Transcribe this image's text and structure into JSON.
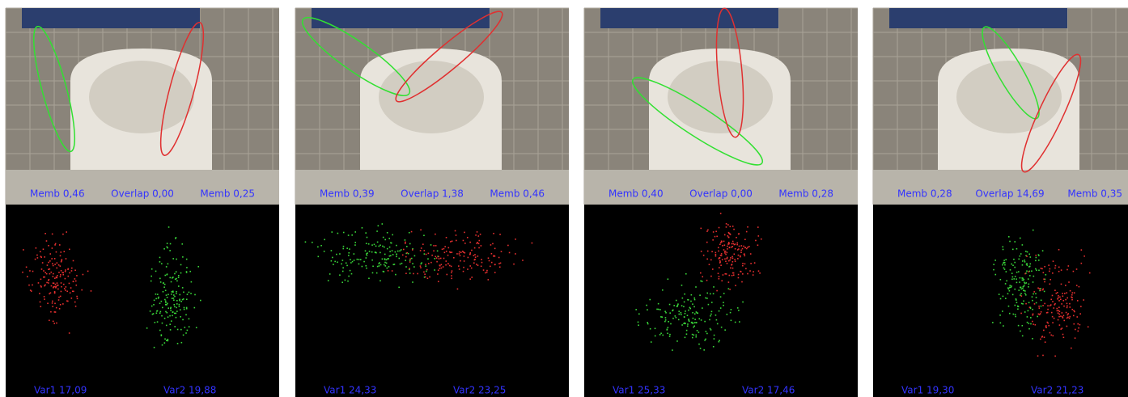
{
  "panels": [
    {
      "memb_left": "Memb 0,46",
      "overlap": "Overlap 0,00",
      "memb_right": "Memb 0,25",
      "var1": "Var1 17,09",
      "var2": "Var2 19,88"
    },
    {
      "memb_left": "Memb 0,39",
      "overlap": "Overlap 1,38",
      "memb_right": "Memb 0,46",
      "var1": "Var1 24,33",
      "var2": "Var2 23,25"
    },
    {
      "memb_left": "Memb 0,40",
      "overlap": "Overlap 0,00",
      "memb_right": "Memb 0,28",
      "var1": "Var1 25,33",
      "var2": "Var2 17,46"
    },
    {
      "memb_left": "Memb 0,28",
      "overlap": "Overlap 14,69",
      "memb_right": "Memb 0,35",
      "var1": "Var1 19,30",
      "var2": "Var2 21,23"
    }
  ]
}
